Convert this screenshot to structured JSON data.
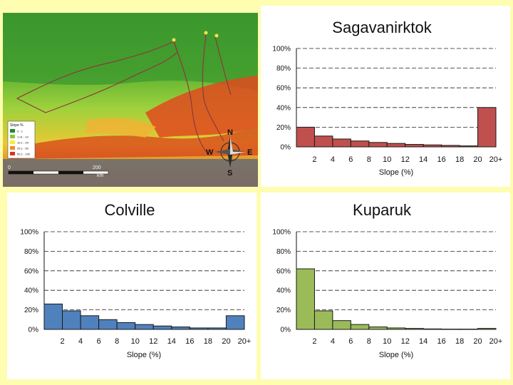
{
  "colors": {
    "background": "#fefdb0",
    "sagavanirktok_bar": "#c0504d",
    "colville_bar": "#4f81bd",
    "kuparuk_bar": "#9bbb59",
    "bar_edge": "#1a1a1a"
  },
  "map": {
    "legend_title": "Slope %",
    "legend_items": [
      "0 - 1",
      "1.01 - 10",
      "10.1 - 25",
      "25.1 - 50",
      "50.1 - 100"
    ],
    "legend_colors": [
      "#1a8c2a",
      "#8cc63f",
      "#f3ef3a",
      "#f28c28",
      "#e0301e"
    ],
    "scale_labels": [
      "0",
      "200"
    ],
    "scale_unit": "km",
    "compass": [
      "N",
      "E",
      "S",
      "W"
    ]
  },
  "chart_data": [
    {
      "type": "bar",
      "title": "Sagavanirktok",
      "xlabel": "Slope (%)",
      "ylabel": "",
      "ylim": [
        0,
        100
      ],
      "yticks": [
        "0%",
        "20%",
        "40%",
        "60%",
        "80%",
        "100%"
      ],
      "xticks": [
        "2",
        "4",
        "6",
        "8",
        "10",
        "12",
        "14",
        "16",
        "18",
        "20",
        "20+"
      ],
      "values": [
        20,
        11,
        8,
        6,
        4.5,
        3.5,
        2.5,
        2,
        1.5,
        1,
        40
      ]
    },
    {
      "type": "bar",
      "title": "Colville",
      "xlabel": "Slope (%)",
      "ylabel": "",
      "ylim": [
        0,
        100
      ],
      "yticks": [
        "0%",
        "20%",
        "40%",
        "60%",
        "80%",
        "100%"
      ],
      "xticks": [
        "2",
        "4",
        "6",
        "8",
        "10",
        "12",
        "14",
        "16",
        "18",
        "20",
        "20+"
      ],
      "values": [
        26,
        19,
        14,
        10,
        7,
        5,
        3.5,
        2.5,
        1.5,
        1.5,
        14
      ]
    },
    {
      "type": "bar",
      "title": "Kuparuk",
      "xlabel": "Slope (%)",
      "ylabel": "",
      "ylim": [
        0,
        100
      ],
      "yticks": [
        "0%",
        "20%",
        "40%",
        "60%",
        "80%",
        "100%"
      ],
      "xticks": [
        "2",
        "4",
        "6",
        "8",
        "10",
        "12",
        "14",
        "16",
        "18",
        "20",
        "20+"
      ],
      "values": [
        62,
        19,
        9,
        5,
        2.5,
        1.5,
        1,
        0.5,
        0.3,
        0.3,
        1
      ]
    }
  ]
}
